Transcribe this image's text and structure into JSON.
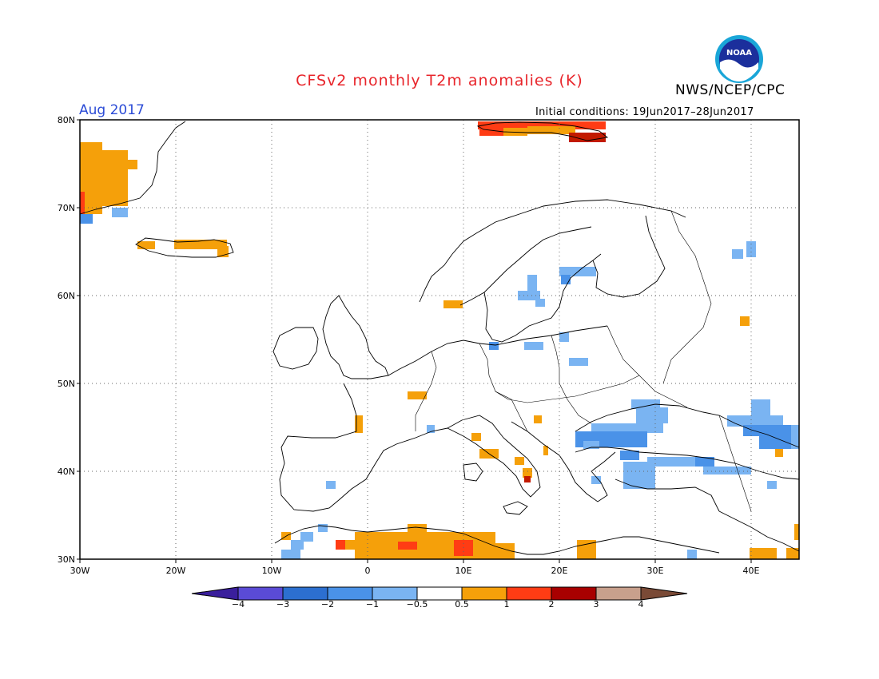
{
  "header": {
    "title": "CFSv2 monthly T2m anomalies (K)",
    "month": "Aug 2017",
    "org": "NWS/NCEP/CPC",
    "initial_conditions": "Initial conditions: 19Jun2017–28Jun2017",
    "logo_text": "NOAA"
  },
  "axes": {
    "lat_labels": [
      "80N",
      "70N",
      "60N",
      "50N",
      "40N",
      "30N"
    ],
    "lat_values": [
      80,
      70,
      60,
      50,
      40,
      30
    ],
    "lon_labels": [
      "30W",
      "20W",
      "10W",
      "0",
      "10E",
      "20E",
      "30E",
      "40E"
    ],
    "lon_values": [
      -30,
      -20,
      -10,
      0,
      10,
      20,
      30,
      40
    ],
    "lon_range": [
      -30,
      45
    ],
    "lat_range": [
      30,
      80
    ],
    "grid": "dotted"
  },
  "colorbar": {
    "labels": [
      "−4",
      "−3",
      "−2",
      "−1",
      "−0.5",
      "0.5",
      "1",
      "2",
      "3",
      "4"
    ],
    "colors": [
      "#3a1f9c",
      "#5a4bd6",
      "#2c6fd0",
      "#4a92e8",
      "#7ab4f2",
      "#ffffff",
      "#f5a00a",
      "#ff3c14",
      "#a80000",
      "#c8a08c",
      "#7a4a36"
    ]
  },
  "anomaly_colors": {
    "warm1": "#f5a00a",
    "warm2": "#ff3c14",
    "warm3": "#c21a00",
    "cool1": "#7ab4f2",
    "cool2": "#4a92e8"
  }
}
